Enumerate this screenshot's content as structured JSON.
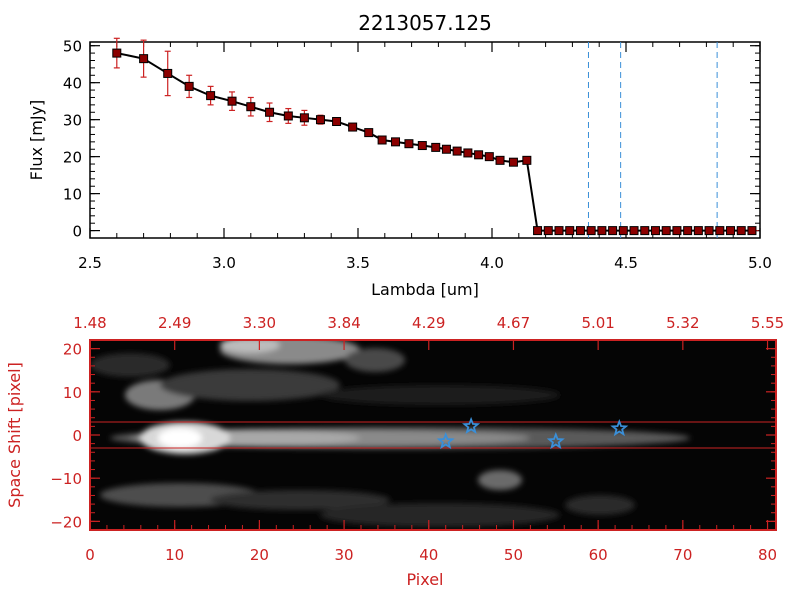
{
  "chart_data": [
    {
      "type": "line",
      "title": "2213057.125",
      "xlabel": "Lambda [um]",
      "ylabel": "Flux [mJy]",
      "xlim": [
        2.5,
        5.0
      ],
      "ylim": [
        -2,
        51
      ],
      "x_ticks": [
        2.5,
        3.0,
        3.5,
        4.0,
        4.5,
        5.0
      ],
      "x_tick_labels": [
        "2.5",
        "3.0",
        "3.5",
        "4.0",
        "4.5",
        "5.0"
      ],
      "y_ticks": [
        0,
        10,
        20,
        30,
        40,
        50
      ],
      "y_tick_labels": [
        "0",
        "10",
        "20",
        "30",
        "40",
        "50"
      ],
      "colors": {
        "line": "#000000",
        "marker": "#8b0000",
        "error": "#cc2222",
        "vline": "#3a8fd8"
      },
      "series": [
        {
          "name": "flux",
          "x": [
            2.6,
            2.7,
            2.79,
            2.87,
            2.95,
            3.03,
            3.1,
            3.17,
            3.24,
            3.3,
            3.36,
            3.42,
            3.48,
            3.54,
            3.59,
            3.64,
            3.69,
            3.74,
            3.79,
            3.83,
            3.87,
            3.91,
            3.95,
            3.99,
            4.03,
            4.08,
            4.13,
            4.17,
            4.21,
            4.25,
            4.29,
            4.33,
            4.37,
            4.41,
            4.45,
            4.49,
            4.53,
            4.57,
            4.61,
            4.65,
            4.69,
            4.73,
            4.77,
            4.81,
            4.85,
            4.89,
            4.93,
            4.97
          ],
          "y": [
            48,
            46.5,
            42.5,
            39,
            36.5,
            35,
            33.5,
            32,
            31,
            30.5,
            30,
            29.5,
            28,
            26.5,
            24.5,
            24,
            23.5,
            23,
            22.5,
            22,
            21.5,
            21,
            20.5,
            20,
            19,
            18.5,
            19,
            0,
            0,
            0,
            0,
            0,
            0,
            0,
            0,
            0,
            0,
            0,
            0,
            0,
            0,
            0,
            0,
            0,
            0,
            0,
            0,
            0
          ],
          "yerr": [
            4,
            5,
            6,
            3,
            2.5,
            2.5,
            2.5,
            2.5,
            2,
            2,
            1.2,
            1,
            0.8,
            0.8,
            0.8,
            0.5,
            0.5,
            0.5,
            0.5,
            0.5,
            0.5,
            0.5,
            0.5,
            0.5,
            0.5,
            0.5,
            0.8,
            0,
            0,
            0,
            0,
            0,
            0,
            0,
            0,
            0,
            0,
            0,
            0,
            0,
            0,
            0,
            0,
            0,
            0,
            0,
            0,
            0
          ]
        }
      ],
      "reference_line": {
        "y": 0,
        "style": "dashed",
        "color": "#cc2222"
      },
      "vertical_lines": [
        4.36,
        4.48,
        4.84
      ]
    },
    {
      "type": "heatmap",
      "xlabel": "Pixel",
      "ylabel": "Space Shift [pixel]",
      "xlim": [
        0,
        81
      ],
      "ylim": [
        -22,
        22
      ],
      "x_ticks": [
        0,
        10,
        20,
        30,
        40,
        50,
        60,
        70,
        80
      ],
      "x_tick_labels": [
        "0",
        "10",
        "20",
        "30",
        "40",
        "50",
        "60",
        "70",
        "80"
      ],
      "y_ticks": [
        -20,
        -10,
        0,
        10,
        20
      ],
      "y_tick_labels": [
        "−20",
        "−10",
        "0",
        "10",
        "20"
      ],
      "top_axis_labels": [
        "1.48",
        "2.49",
        "3.30",
        "3.84",
        "4.29",
        "4.67",
        "5.01",
        "5.32",
        "5.55"
      ],
      "top_axis_positions": [
        0,
        10,
        20,
        30,
        40,
        50,
        60,
        70,
        80
      ],
      "extraction_band": [
        -3,
        3
      ],
      "colors": {
        "axis": "#cc2222",
        "star": "#3a8fd8",
        "band": "#cc2222"
      },
      "sources": [
        {
          "x": 42,
          "y": -1.5
        },
        {
          "x": 45,
          "y": 2
        },
        {
          "x": 55,
          "y": -1.5
        },
        {
          "x": 62.5,
          "y": 1.5
        }
      ]
    }
  ]
}
